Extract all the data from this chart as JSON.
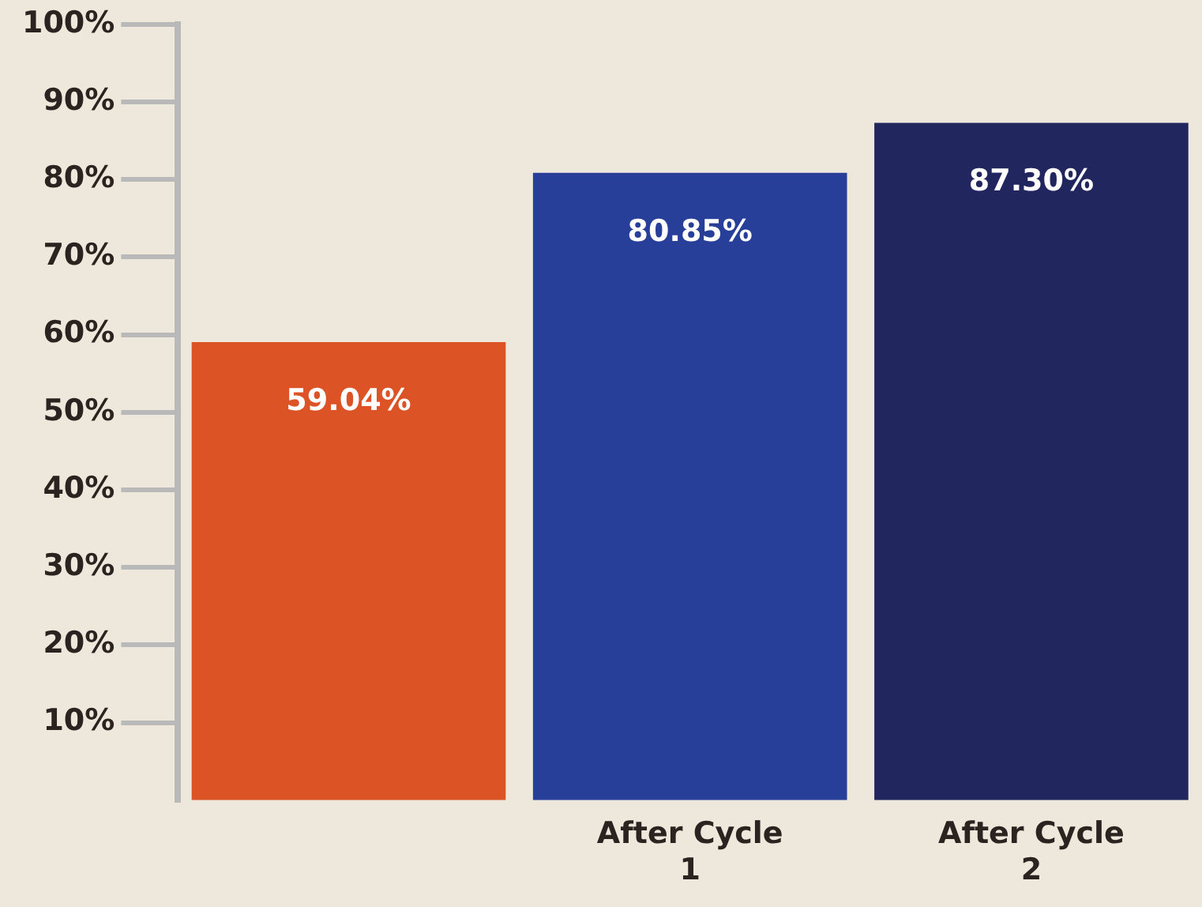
{
  "chart_data": {
    "type": "bar",
    "categories": [
      null,
      "After Cycle 1",
      "After Cycle 2"
    ],
    "values": [
      59.04,
      80.85,
      87.3
    ],
    "colors": [
      "#dc5426",
      "#283f9a",
      "#22265e"
    ],
    "value_labels": [
      "59.04%",
      "80.85%",
      "87.30%"
    ],
    "ylim": [
      0,
      100
    ],
    "yticks": [
      {
        "value": 10,
        "label": "10%"
      },
      {
        "value": 20,
        "label": "20%"
      },
      {
        "value": 30,
        "label": "30%"
      },
      {
        "value": 40,
        "label": "40%"
      },
      {
        "value": 50,
        "label": "50%"
      },
      {
        "value": 60,
        "label": "60%"
      },
      {
        "value": 70,
        "label": "70%"
      },
      {
        "value": 80,
        "label": "80%"
      },
      {
        "value": 90,
        "label": "90%"
      },
      {
        "value": 100,
        "label": "100%"
      }
    ],
    "grid": false
  }
}
